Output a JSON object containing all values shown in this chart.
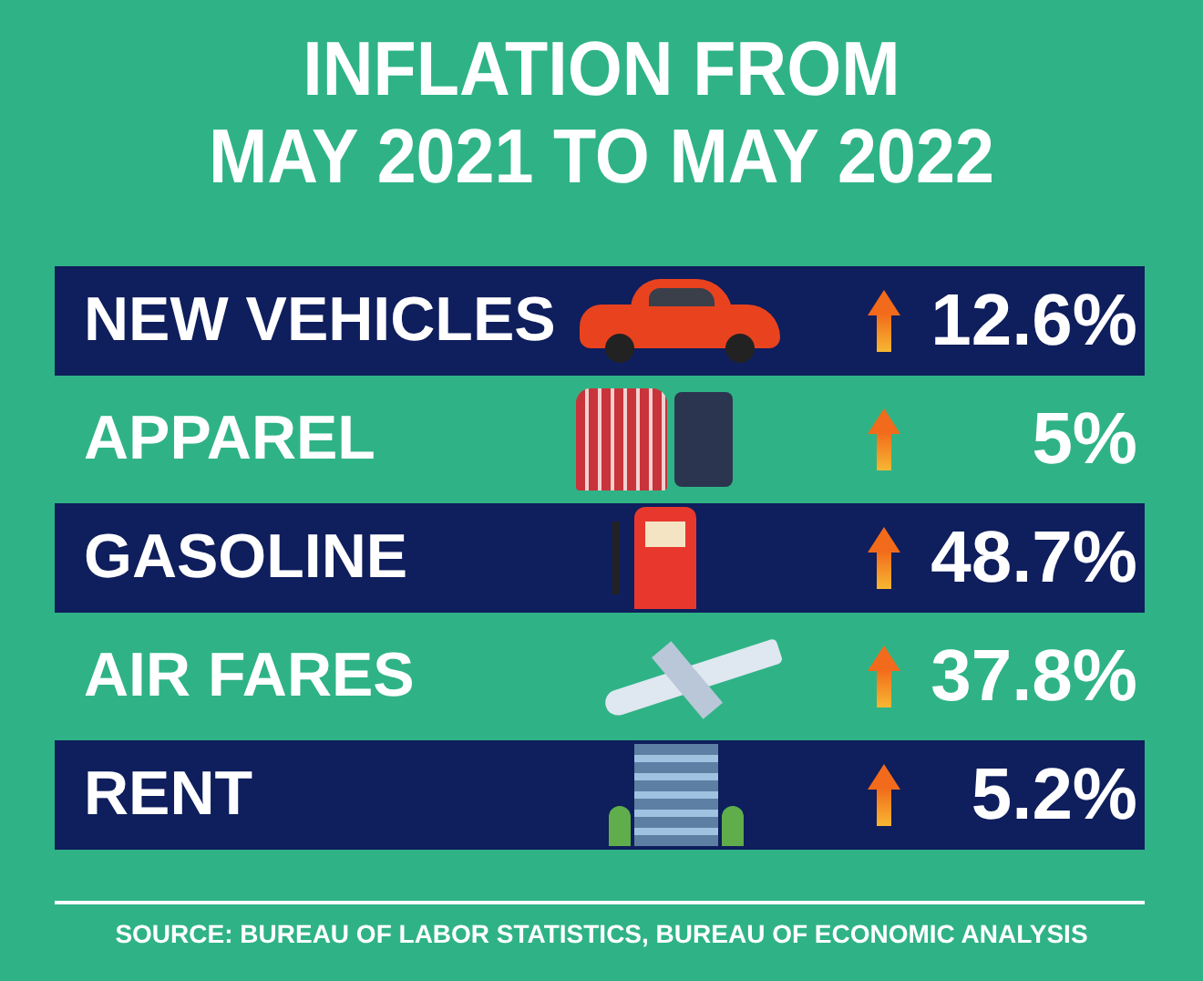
{
  "chart_data": {
    "type": "other",
    "title": "INFLATION FROM\nMAY 2021 TO MAY 2022",
    "categories": [
      "NEW VEHICLES",
      "APPAREL",
      "GASOLINE",
      "AIR FARES",
      "RENT"
    ],
    "values": [
      12.6,
      5,
      48.7,
      37.8,
      5.2
    ],
    "value_labels": [
      "12.6%",
      "5%",
      "48.7%",
      "37.8%",
      "5.2%"
    ],
    "annotations": [
      "SOURCE: BUREAU OF LABOR STATISTICS, BUREAU OF ECONOMIC ANALYSIS"
    ]
  }
}
